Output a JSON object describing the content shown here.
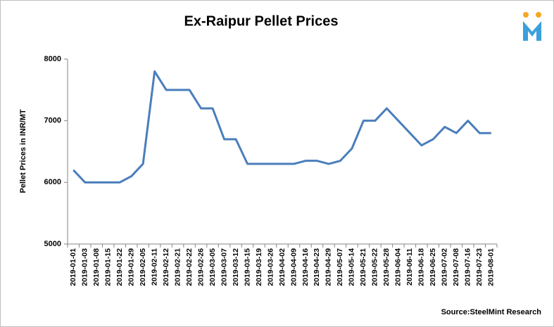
{
  "chart_data": {
    "type": "line",
    "title": "Ex-Raipur Pellet Prices",
    "y_label": "Pellet Prices in INR/MT",
    "source": "Source:SteelMint Research",
    "categories": [
      "2019-01-01",
      "2019-01-03",
      "2019-01-08",
      "2019-01-15",
      "2019-01-22",
      "2019-01-29",
      "2019-02-05",
      "2019-02-11",
      "2019-02-12",
      "2019-02-21",
      "2019-02-22",
      "2019-02-26",
      "2019-03-05",
      "2019-03-07",
      "2019-03-12",
      "2019-03-15",
      "2019-03-19",
      "2019-03-26",
      "2019-04-02",
      "2019-04-09",
      "2019-04-16",
      "2019-04-23",
      "2019-04-29",
      "2019-05-07",
      "2019-05-14",
      "2019-05-21",
      "2019-05-22",
      "2019-05-28",
      "2019-06-04",
      "2019-06-11",
      "2019-06-18",
      "2019-06-25",
      "2019-07-02",
      "2019-07-08",
      "2019-07-16",
      "2019-07-23",
      "2019-08-01"
    ],
    "values": [
      6200,
      6000,
      6000,
      6000,
      6000,
      6100,
      6300,
      7800,
      7500,
      7500,
      7500,
      7200,
      7200,
      6700,
      6700,
      6300,
      6300,
      6300,
      6300,
      6300,
      6350,
      6350,
      6300,
      6350,
      6550,
      7000,
      7000,
      7200,
      7000,
      6800,
      6600,
      6700,
      6900,
      6800,
      7000,
      6800,
      6800
    ],
    "color": "#4a7ebb",
    "ylim": [
      5000,
      8000
    ],
    "yticks": [
      5000,
      6000,
      7000,
      8000
    ],
    "grid": false
  }
}
